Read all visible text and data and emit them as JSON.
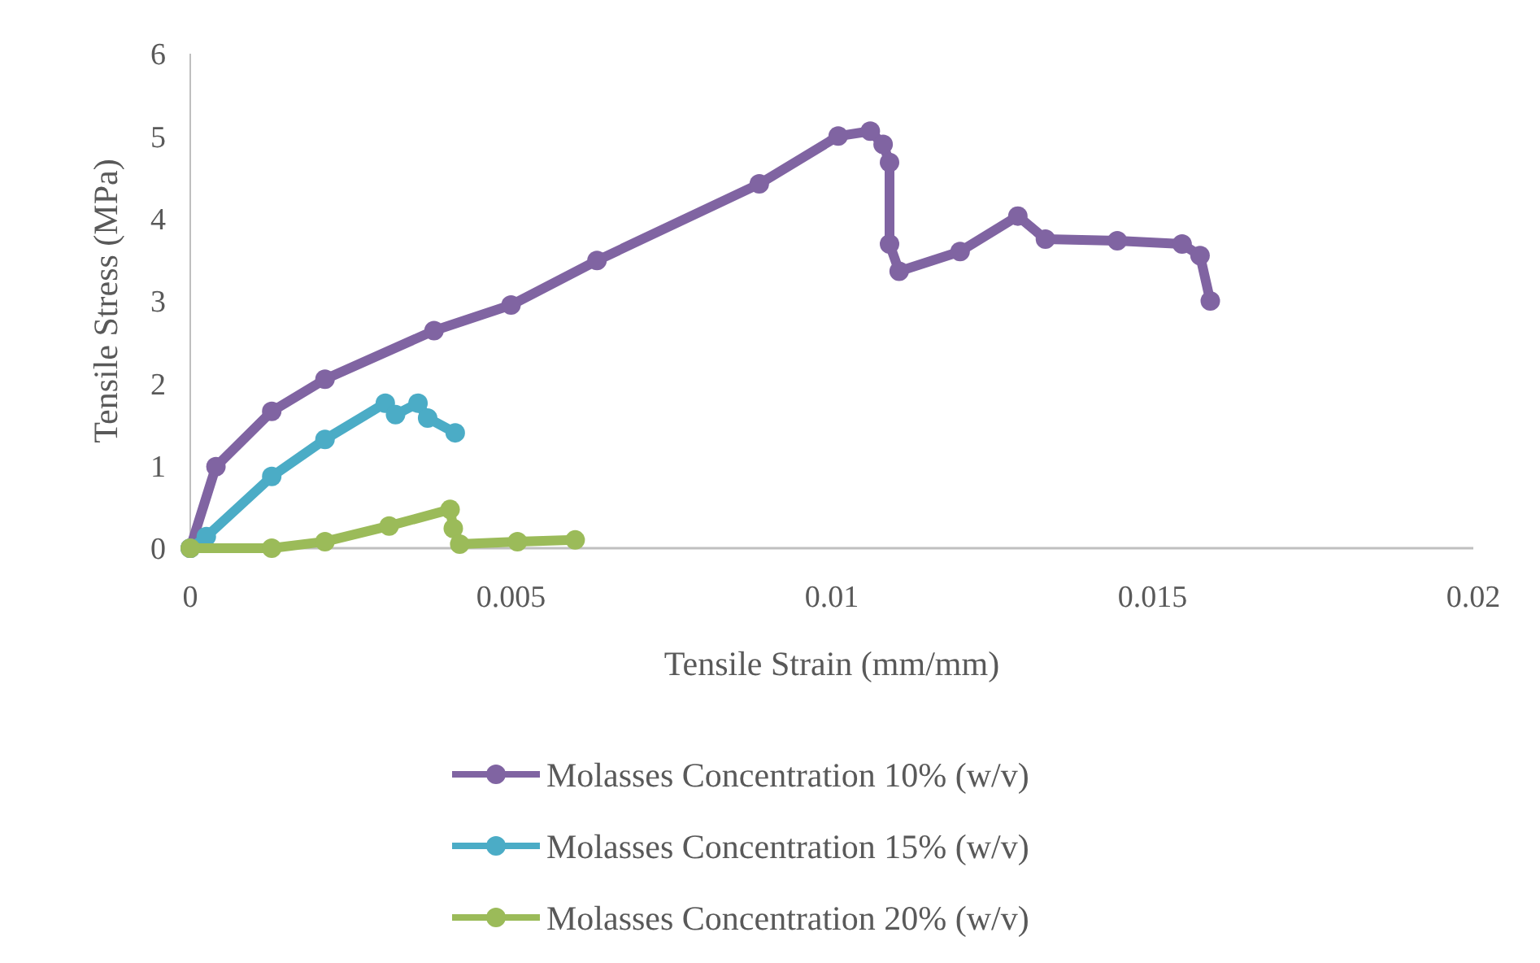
{
  "chart_data": {
    "type": "line",
    "xlabel": "Tensile Strain (mm/mm)",
    "ylabel": "Tensile Stress (MPa)",
    "xlim": [
      0,
      0.02
    ],
    "xticks": [
      0,
      0.005,
      0.01,
      0.015,
      0.02
    ],
    "ylim": [
      0,
      6
    ],
    "yticks": [
      0,
      1,
      2,
      3,
      4,
      5,
      6
    ],
    "grid": false,
    "legend": "bottom",
    "marker": "circle",
    "line_style": "solid",
    "series": [
      {
        "name": "Molasses Concentration 10% (w/v)",
        "color": "#8064a2",
        "x": [
          0,
          0.0004,
          0.00127,
          0.0021,
          0.0038,
          0.005,
          0.00634,
          0.00887,
          0.0101,
          0.0106,
          0.0108,
          0.0109,
          0.0109,
          0.01105,
          0.012,
          0.0129,
          0.01333,
          0.01445,
          0.01546,
          0.01574,
          0.0159
        ],
        "values": [
          0,
          0.99,
          1.66,
          2.05,
          2.64,
          2.95,
          3.49,
          4.42,
          5.0,
          5.06,
          4.9,
          4.68,
          3.69,
          3.36,
          3.6,
          4.03,
          3.75,
          3.73,
          3.69,
          3.55,
          3.0
        ]
      },
      {
        "name": "Molasses Concentration 15% (w/v)",
        "color": "#4bacc6",
        "x": [
          0,
          0.00025,
          0.00127,
          0.0021,
          0.00304,
          0.0032,
          0.00355,
          0.0037,
          0.00413
        ],
        "values": [
          0,
          0.14,
          0.87,
          1.32,
          1.76,
          1.62,
          1.76,
          1.58,
          1.4
        ]
      },
      {
        "name": "Molasses Concentration 20% (w/v)",
        "color": "#9bbb59",
        "x": [
          0,
          0.00127,
          0.0021,
          0.0031,
          0.00405,
          0.0041,
          0.0042,
          0.0051,
          0.006
        ],
        "values": [
          0,
          0,
          0.08,
          0.27,
          0.47,
          0.24,
          0.05,
          0.08,
          0.1
        ]
      }
    ]
  }
}
